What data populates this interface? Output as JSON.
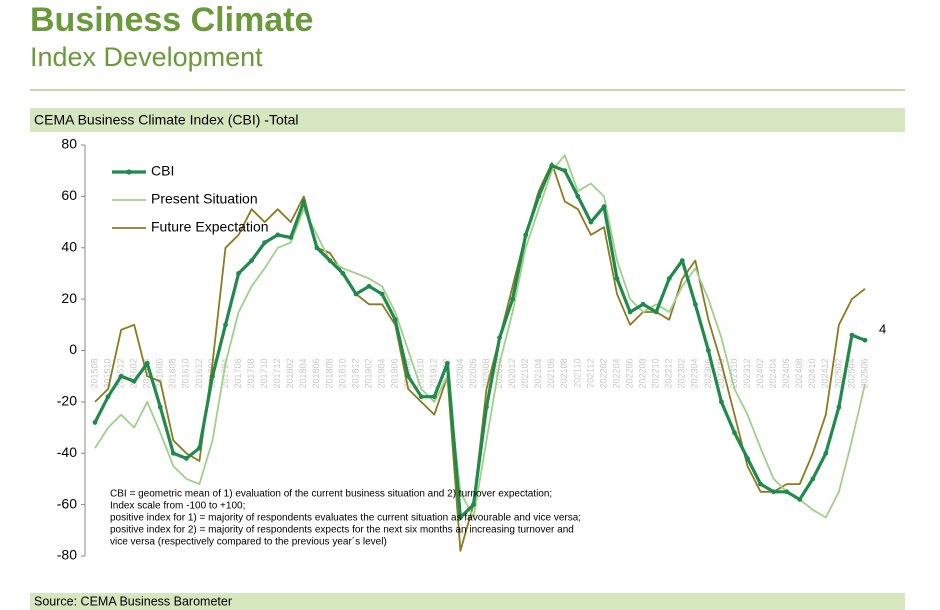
{
  "header": {
    "title": "Business Climate",
    "subtitle": "Index Development"
  },
  "chart_data": {
    "type": "line",
    "title": "CEMA Business Climate Index (CBI) -Total",
    "categories": [
      "201508",
      "201510",
      "201512",
      "201602",
      "201604",
      "201606",
      "201608",
      "201610",
      "201612",
      "201702",
      "201704",
      "201706",
      "201708",
      "201710",
      "201712",
      "201802",
      "201804",
      "201806",
      "201808",
      "201810",
      "201812",
      "201902",
      "201904",
      "201906",
      "201908",
      "201910",
      "201912",
      "202002",
      "202004",
      "202006",
      "202008",
      "202010",
      "202012",
      "202102",
      "202104",
      "202106",
      "202108",
      "202110",
      "202112",
      "202202",
      "202204",
      "202206",
      "202208",
      "202210",
      "202212",
      "202302",
      "202304",
      "202306",
      "202308",
      "202310",
      "202312",
      "202402",
      "202404",
      "202406",
      "202408",
      "202410",
      "202412",
      "202502",
      "202504",
      "202506"
    ],
    "series": [
      {
        "name": "CBI",
        "color": "#1f8a4c",
        "values": [
          -28,
          -18,
          -10,
          -12,
          -5,
          -22,
          -40,
          -42,
          -38,
          -10,
          10,
          30,
          35,
          42,
          45,
          44,
          58,
          40,
          35,
          30,
          22,
          25,
          22,
          12,
          -10,
          -18,
          -18,
          -5,
          -65,
          -60,
          -22,
          5,
          20,
          45,
          60,
          72,
          70,
          60,
          50,
          56,
          28,
          15,
          18,
          15,
          28,
          35,
          18,
          0,
          -20,
          -32,
          -42,
          -52,
          -55,
          -55,
          -58,
          -50,
          -40,
          -22,
          6,
          4
        ]
      },
      {
        "name": "Present Situation",
        "color": "#9fd08a",
        "values": [
          -38,
          -30,
          -25,
          -30,
          -20,
          -32,
          -45,
          -50,
          -52,
          -35,
          -5,
          15,
          25,
          32,
          40,
          42,
          55,
          45,
          35,
          32,
          30,
          28,
          25,
          15,
          0,
          -15,
          -20,
          -10,
          -55,
          -65,
          -35,
          -5,
          15,
          40,
          55,
          70,
          76,
          62,
          65,
          60,
          35,
          20,
          15,
          18,
          15,
          25,
          32,
          20,
          5,
          -15,
          -25,
          -38,
          -50,
          -55,
          -58,
          -62,
          -65,
          -55,
          -35,
          -13
        ]
      },
      {
        "name": "Future Expectation",
        "color": "#8b7a1f",
        "values": [
          -20,
          -15,
          8,
          10,
          -10,
          -12,
          -35,
          -40,
          -43,
          -5,
          40,
          45,
          55,
          50,
          55,
          50,
          60,
          40,
          38,
          30,
          22,
          18,
          18,
          10,
          -15,
          -20,
          -25,
          -10,
          -78,
          -60,
          -15,
          5,
          25,
          45,
          62,
          73,
          58,
          55,
          45,
          48,
          22,
          10,
          15,
          15,
          12,
          28,
          35,
          12,
          -5,
          -25,
          -45,
          -55,
          -55,
          -52,
          -52,
          -40,
          -25,
          10,
          20,
          24
        ]
      }
    ],
    "ylim": [
      -80,
      80
    ],
    "yticks": [
      -80,
      -60,
      -40,
      -20,
      0,
      20,
      40,
      60,
      80
    ],
    "notes": [
      "CBI = geometric mean of 1) evaluation of the current business situation and 2) turnover expectation;",
      "Index scale from -100 to +100;",
      "positive index for 1) = majority of respondents evaluates the current situation as favourable and vice versa;",
      "positive index for 2) = majority of respondents expects for the next six months an increasing turnover and",
      "vice versa (respectively compared to the previous year´s level)"
    ],
    "source": "Source: CEMA Business Barometer"
  }
}
